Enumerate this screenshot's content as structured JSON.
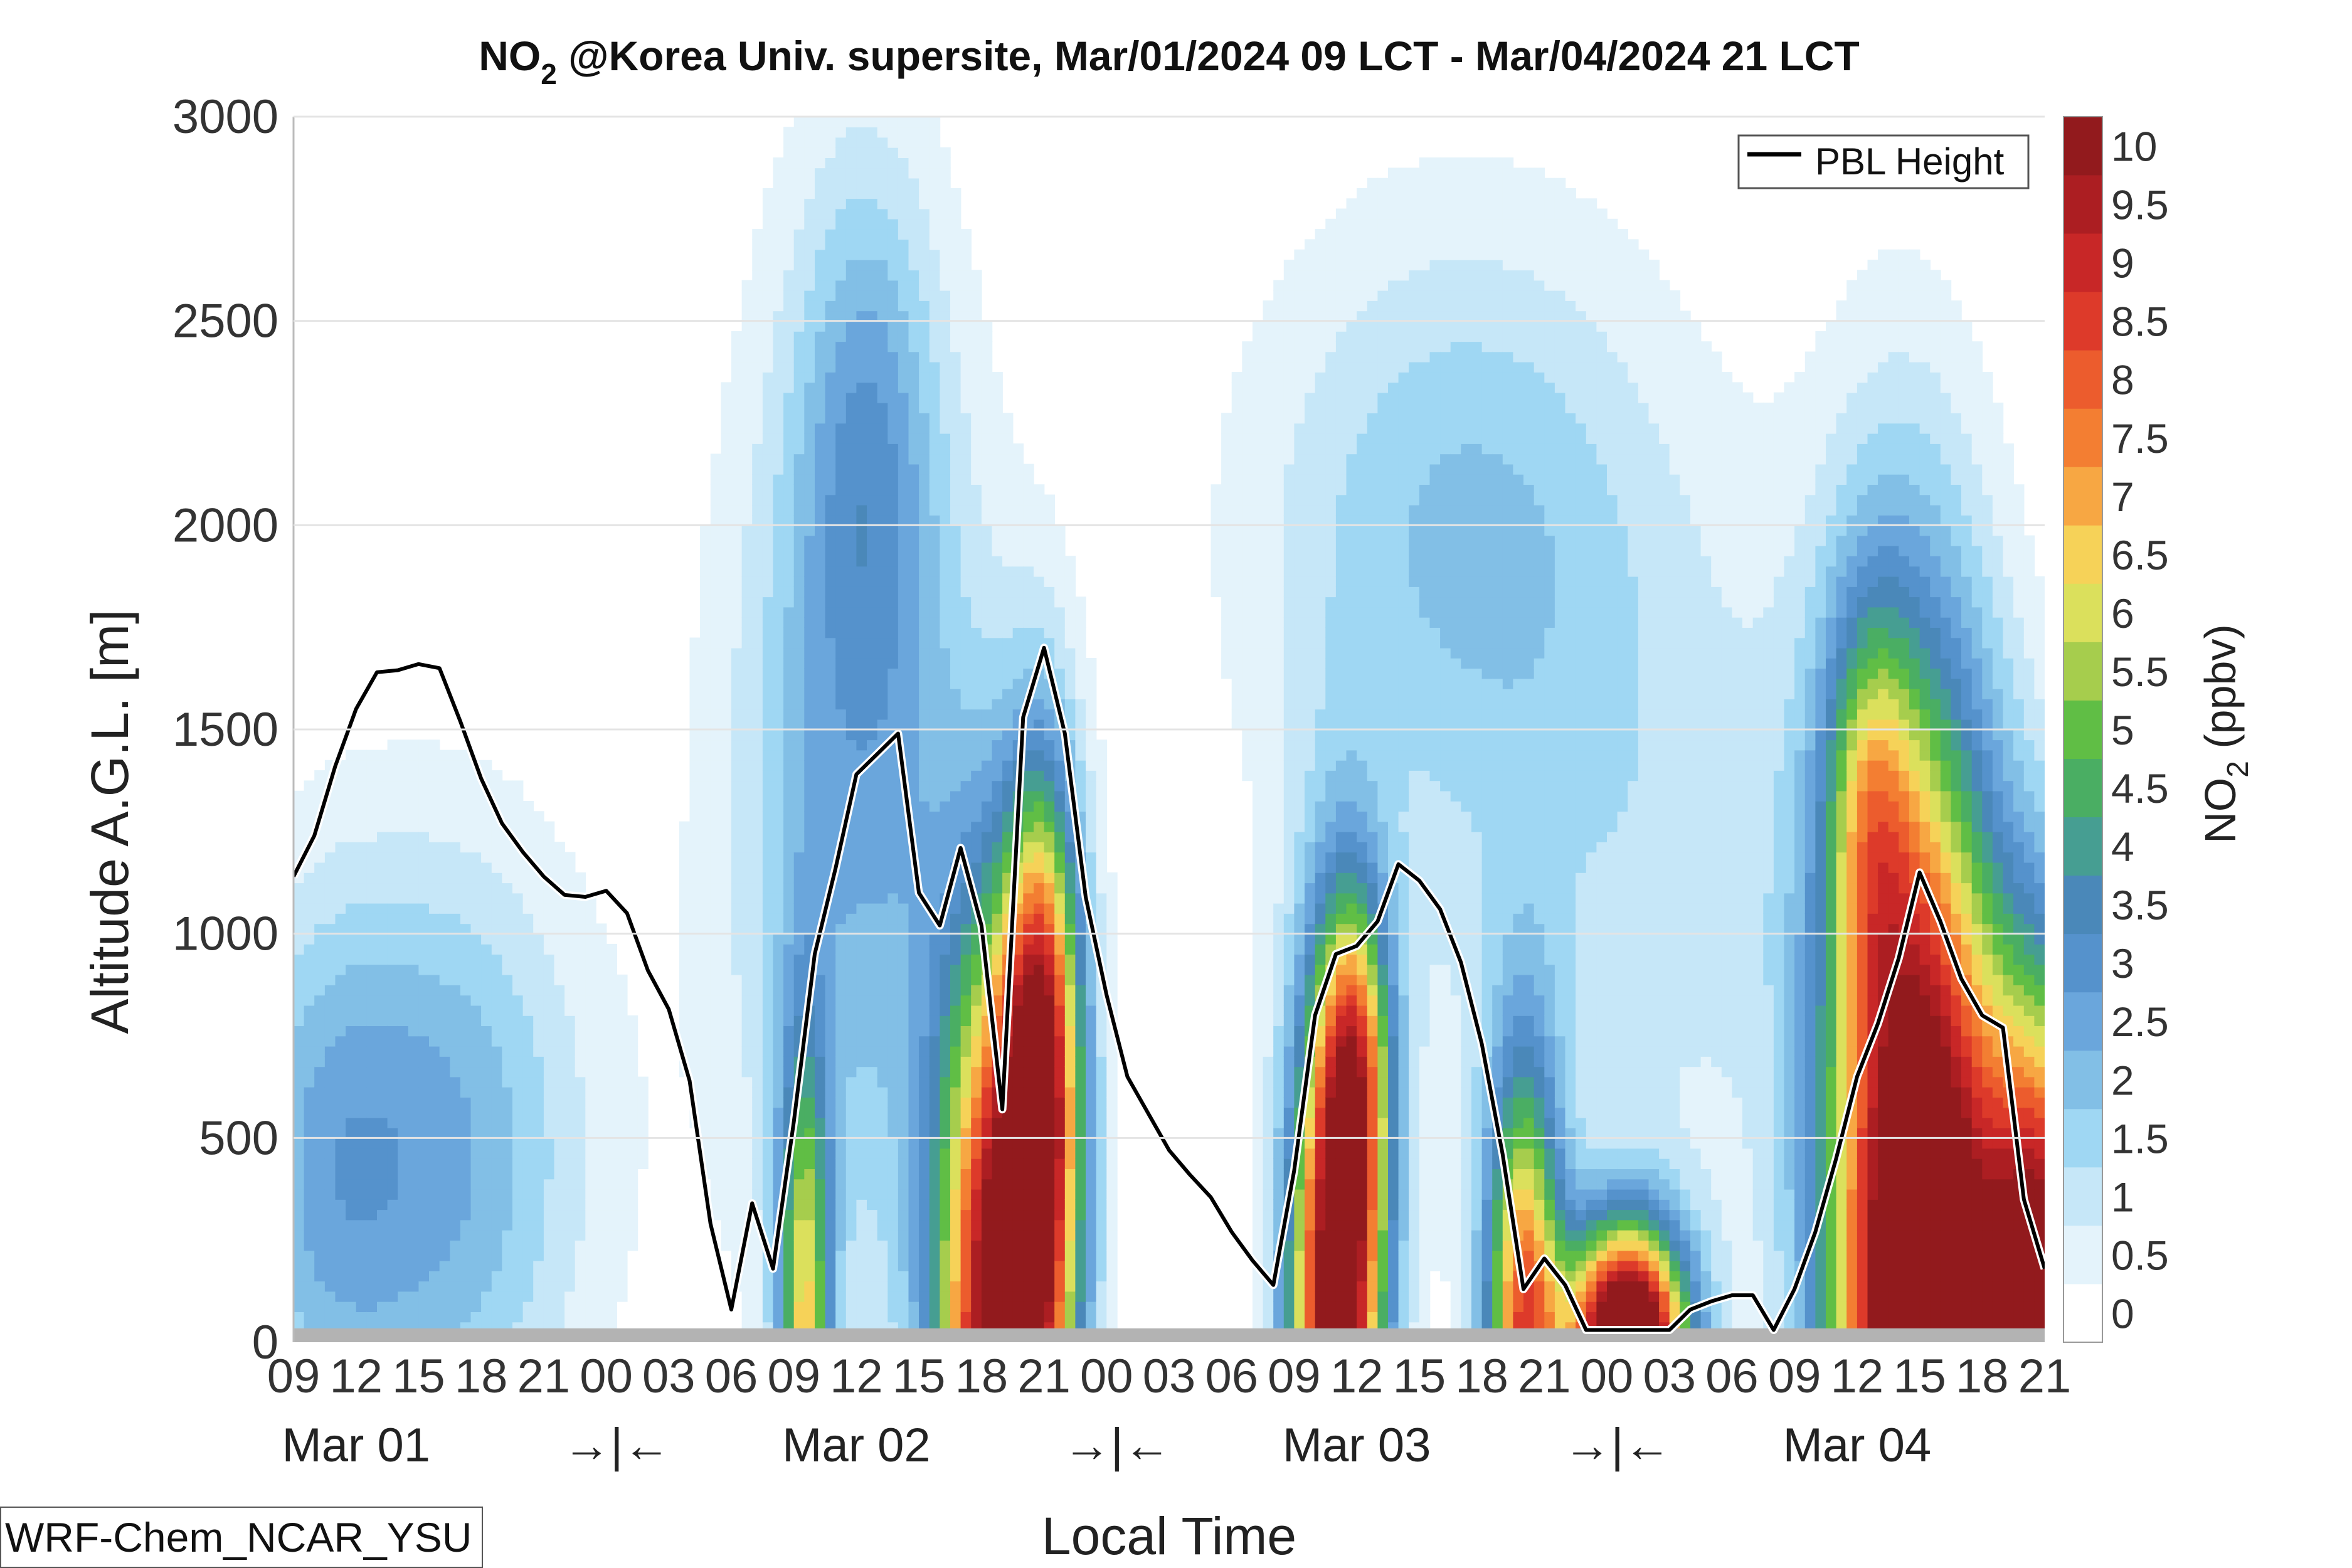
{
  "title": {
    "main": "NO",
    "sub": "2",
    "rest": " @Korea Univ. supersite, Mar/01/2024 09 LCT - Mar/04/2024 21 LCT"
  },
  "ylabel": "Altitude A.G.L. [m]",
  "xlabel": "Local Time",
  "colorbar_label": {
    "main": "NO",
    "sub": "2",
    "rest": " (ppbv)"
  },
  "credit": "WRF-Chem_NCAR_YSU",
  "legend": {
    "pbl": "PBL Height"
  },
  "chart_data": {
    "type": "contour",
    "title": "NO2 @Korea Univ. supersite, Mar/01/2024 09 LCT - Mar/04/2024 21 LCT",
    "xlabel": "Local Time",
    "ylabel": "Altitude A.G.L. [m]",
    "ylim": [
      0,
      3000
    ],
    "x_range_hours": [
      0,
      84
    ],
    "x_ticks": [
      "09",
      "12",
      "15",
      "18",
      "21",
      "00",
      "03",
      "06",
      "09",
      "12",
      "15",
      "18",
      "21",
      "00",
      "03",
      "06",
      "09",
      "12",
      "15",
      "18",
      "21",
      "00",
      "03",
      "06",
      "09",
      "12",
      "15",
      "18",
      "21"
    ],
    "day_labels": [
      "Mar 01",
      "→|←",
      "Mar 02",
      "→|←",
      "Mar 03",
      "→|←",
      "Mar 04"
    ],
    "day_label_hours": [
      3,
      15.5,
      27,
      39.5,
      51,
      63.5,
      75
    ],
    "y_ticks": [
      0,
      500,
      1000,
      1500,
      2000,
      2500,
      3000
    ],
    "colorbar": {
      "levels": [
        0,
        0.5,
        1,
        1.5,
        2,
        2.5,
        3,
        3.5,
        4,
        4.5,
        5,
        5.5,
        6,
        6.5,
        7,
        7.5,
        8,
        8.5,
        9,
        9.5,
        10
      ],
      "tick_labels": [
        "0",
        "0.5",
        "1",
        "1.5",
        "2",
        "2.5",
        "3",
        "3.5",
        "4",
        "4.5",
        "5",
        "5.5",
        "6",
        "6.5",
        "7",
        "7.5",
        "8",
        "8.5",
        "9",
        "9.5",
        "10"
      ],
      "colors": [
        "#ffffff",
        "#e4f3fb",
        "#c6e7f8",
        "#9fd7f3",
        "#82bfe6",
        "#6aa6dc",
        "#5592cc",
        "#4a88b9",
        "#469e92",
        "#4aae63",
        "#60be45",
        "#a6cd4d",
        "#dbe05c",
        "#f6d258",
        "#f7a743",
        "#f37e32",
        "#ec5c2d",
        "#dd3a2a",
        "#c82727",
        "#ac1e22",
        "#921a1d"
      ]
    },
    "series": [
      {
        "name": "PBL Height",
        "x": [
          0,
          1,
          2,
          3,
          4,
          5,
          6,
          7,
          8,
          9,
          10,
          11,
          12,
          13,
          14,
          15,
          16,
          17,
          18,
          19,
          20,
          21,
          22,
          23,
          24,
          25,
          26,
          27,
          28,
          29,
          30,
          31,
          32,
          33,
          34,
          35,
          36,
          37,
          38,
          39,
          40,
          41,
          42,
          43,
          44,
          45,
          46,
          47,
          48,
          49,
          50,
          51,
          52,
          53,
          54,
          55,
          56,
          57,
          58,
          59,
          60,
          61,
          62,
          63,
          64,
          65,
          66,
          67,
          68,
          69,
          70,
          71,
          72,
          73,
          74,
          75,
          76,
          77,
          78,
          79,
          80,
          81,
          82,
          83,
          84
        ],
        "y": [
          1140,
          1240,
          1410,
          1550,
          1640,
          1645,
          1660,
          1650,
          1520,
          1380,
          1270,
          1200,
          1140,
          1095,
          1090,
          1105,
          1050,
          910,
          815,
          640,
          290,
          80,
          340,
          180,
          540,
          950,
          1160,
          1390,
          1440,
          1490,
          1100,
          1020,
          1210,
          1020,
          570,
          1530,
          1700,
          1490,
          1090,
          850,
          650,
          560,
          470,
          410,
          355,
          270,
          200,
          140,
          420,
          800,
          950,
          970,
          1030,
          1170,
          1130,
          1060,
          930,
          730,
          460,
          130,
          205,
          140,
          30,
          30,
          30,
          30,
          30,
          80,
          100,
          115,
          115,
          30,
          130,
          270,
          450,
          650,
          780,
          940,
          1150,
          1030,
          890,
          800,
          770,
          350,
          180
        ]
      }
    ],
    "field_rows": [
      [
        0.5,
        0.5,
        0.5,
        0.5,
        0.5,
        0.5,
        0.5,
        0.5,
        0.5,
        0.5,
        0.5,
        0.5,
        0.5,
        0.5,
        0.5,
        0.5,
        0.5,
        0.5,
        0.5,
        0.5,
        1,
        1.5,
        1.5,
        2,
        2,
        2,
        2,
        2,
        2,
        2,
        2,
        1.5,
        1.5,
        1.5,
        1.5,
        1.5,
        1.5,
        1.5,
        0.5,
        0.5,
        0.5,
        0.5,
        0.5,
        0.5,
        0.5,
        0.5,
        0.5,
        0.5,
        0.5,
        0.5,
        0.5,
        0.5,
        0.5,
        0.5,
        0.5,
        0.5,
        0.5,
        0.5,
        0.5,
        0.5,
        0.5,
        0.5,
        0.5,
        0.5,
        0.5,
        0.5,
        0.5,
        0.5,
        0.5,
        0.5,
        0.5,
        0.5,
        0.5,
        0.5,
        0.5,
        0.5,
        0.5,
        0.5,
        0.5,
        0.5,
        0.5,
        0.5,
        0.5,
        0.5,
        0.5,
        0.5
      ]
    ]
  }
}
